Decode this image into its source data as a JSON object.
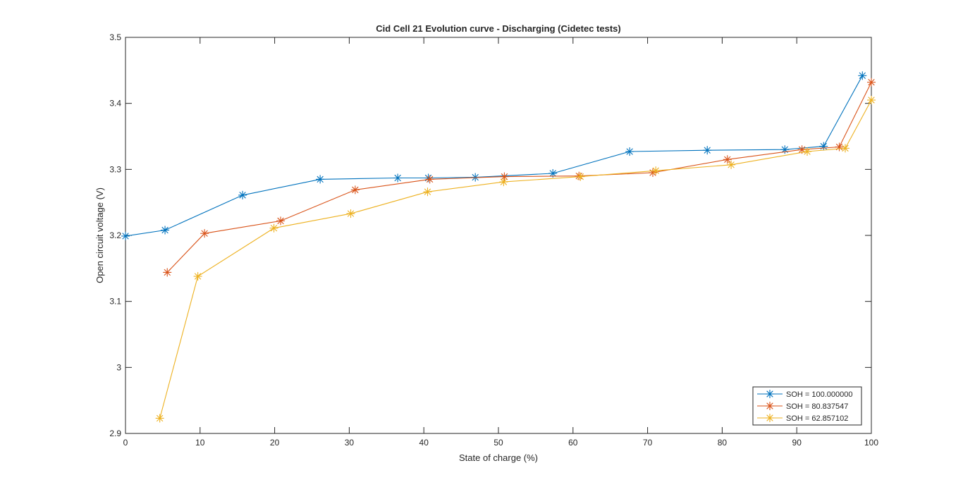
{
  "chart_data": {
    "type": "line",
    "title": "Cid Cell 21 Evolution curve - Discharging (Cidetec tests)",
    "xlabel": "State of charge (%)",
    "ylabel": "Open circuit voltage (V)",
    "xlim": [
      0,
      100
    ],
    "ylim": [
      2.9,
      3.5
    ],
    "xticks": [
      0,
      10,
      20,
      30,
      40,
      50,
      60,
      70,
      80,
      90,
      100
    ],
    "xtick_labels": [
      "0",
      "10",
      "20",
      "30",
      "40",
      "50",
      "60",
      "70",
      "80",
      "90",
      "100"
    ],
    "yticks": [
      2.9,
      3.0,
      3.1,
      3.2,
      3.3,
      3.4,
      3.5
    ],
    "ytick_labels": [
      "2.9",
      "3",
      "3.1",
      "3.2",
      "3.3",
      "3.4",
      "3.5"
    ],
    "grid": false,
    "legend_position": "bottom-right",
    "marker": "asterisk",
    "series": [
      {
        "name": "SOH = 100.000000",
        "color": "#0072BD",
        "points": [
          [
            0.0,
            3.199
          ],
          [
            5.3,
            3.208
          ],
          [
            15.7,
            3.261
          ],
          [
            26.1,
            3.285
          ],
          [
            36.5,
            3.287
          ],
          [
            40.6,
            3.287
          ],
          [
            46.9,
            3.288
          ],
          [
            57.3,
            3.294
          ],
          [
            67.6,
            3.327
          ],
          [
            78.0,
            3.329
          ],
          [
            88.4,
            3.33
          ],
          [
            93.6,
            3.335
          ],
          [
            98.8,
            3.442
          ]
        ]
      },
      {
        "name": "SOH = 80.837547",
        "color": "#D95319",
        "points": [
          [
            5.6,
            3.144
          ],
          [
            10.6,
            3.203
          ],
          [
            20.8,
            3.222
          ],
          [
            30.8,
            3.269
          ],
          [
            40.8,
            3.285
          ],
          [
            50.8,
            3.289
          ],
          [
            60.8,
            3.29
          ],
          [
            70.7,
            3.295
          ],
          [
            80.7,
            3.315
          ],
          [
            90.7,
            3.33
          ],
          [
            95.7,
            3.334
          ],
          [
            100.0,
            3.432
          ]
        ]
      },
      {
        "name": "SOH = 62.857102",
        "color": "#EDB120",
        "points": [
          [
            4.6,
            2.923
          ],
          [
            9.7,
            3.138
          ],
          [
            19.9,
            3.211
          ],
          [
            30.2,
            3.233
          ],
          [
            40.5,
            3.266
          ],
          [
            50.7,
            3.281
          ],
          [
            61.0,
            3.289
          ],
          [
            71.1,
            3.298
          ],
          [
            81.2,
            3.307
          ],
          [
            91.4,
            3.327
          ],
          [
            96.5,
            3.332
          ],
          [
            100.0,
            3.405
          ]
        ]
      }
    ]
  }
}
